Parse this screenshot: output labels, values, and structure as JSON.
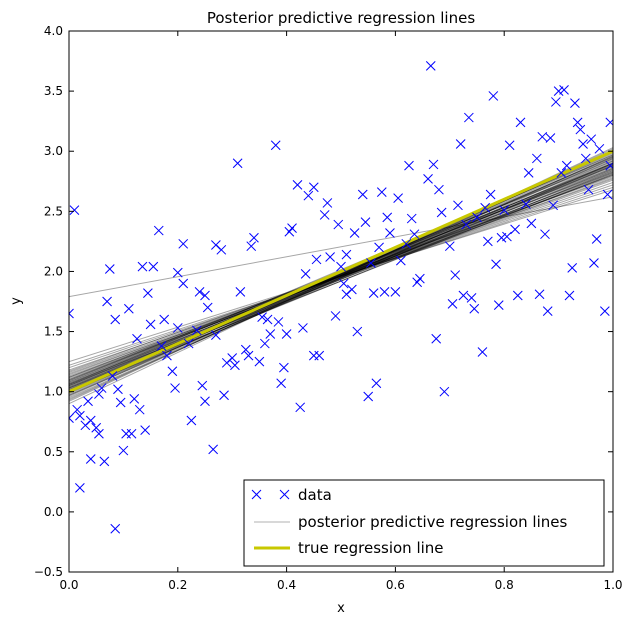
{
  "chart_data": {
    "type": "scatter",
    "title": "Posterior predictive regression lines",
    "xlabel": "x",
    "ylabel": "y",
    "xlim": [
      0.0,
      1.0
    ],
    "ylim": [
      -0.5,
      4.0
    ],
    "xticks": [
      "0.0",
      "0.2",
      "0.4",
      "0.6",
      "0.8",
      "1.0"
    ],
    "yticks": [
      "−0.5",
      "0.0",
      "0.5",
      "1.0",
      "1.5",
      "2.0",
      "2.5",
      "3.0",
      "3.5",
      "4.0"
    ],
    "grid": false,
    "legend_position": "bottom-right",
    "series": [
      {
        "name": "data",
        "kind": "scatter",
        "marker": "x",
        "color": "#0000ff",
        "points": [
          [
            0.0,
            1.65
          ],
          [
            0.0,
            0.78
          ],
          [
            0.01,
            2.51
          ],
          [
            0.015,
            0.85
          ],
          [
            0.02,
            0.2
          ],
          [
            0.02,
            0.8
          ],
          [
            0.03,
            0.72
          ],
          [
            0.035,
            0.92
          ],
          [
            0.04,
            0.44
          ],
          [
            0.04,
            0.76
          ],
          [
            0.05,
            0.7
          ],
          [
            0.055,
            0.65
          ],
          [
            0.055,
            0.98
          ],
          [
            0.06,
            1.03
          ],
          [
            0.065,
            0.42
          ],
          [
            0.07,
            1.75
          ],
          [
            0.075,
            2.02
          ],
          [
            0.08,
            1.13
          ],
          [
            0.085,
            -0.14
          ],
          [
            0.085,
            1.6
          ],
          [
            0.09,
            1.02
          ],
          [
            0.095,
            0.91
          ],
          [
            0.1,
            0.51
          ],
          [
            0.105,
            0.65
          ],
          [
            0.11,
            1.69
          ],
          [
            0.115,
            0.65
          ],
          [
            0.12,
            0.94
          ],
          [
            0.125,
            1.44
          ],
          [
            0.13,
            0.85
          ],
          [
            0.135,
            2.04
          ],
          [
            0.14,
            0.68
          ],
          [
            0.145,
            1.82
          ],
          [
            0.15,
            1.56
          ],
          [
            0.155,
            2.04
          ],
          [
            0.165,
            2.34
          ],
          [
            0.17,
            1.38
          ],
          [
            0.175,
            1.6
          ],
          [
            0.18,
            1.3
          ],
          [
            0.19,
            1.17
          ],
          [
            0.195,
            1.03
          ],
          [
            0.2,
            1.99
          ],
          [
            0.2,
            1.53
          ],
          [
            0.21,
            1.9
          ],
          [
            0.21,
            2.23
          ],
          [
            0.22,
            1.4
          ],
          [
            0.225,
            0.76
          ],
          [
            0.235,
            1.51
          ],
          [
            0.24,
            1.83
          ],
          [
            0.245,
            1.05
          ],
          [
            0.25,
            0.92
          ],
          [
            0.25,
            1.8
          ],
          [
            0.255,
            1.7
          ],
          [
            0.265,
            0.52
          ],
          [
            0.27,
            2.22
          ],
          [
            0.27,
            1.47
          ],
          [
            0.28,
            2.18
          ],
          [
            0.285,
            0.97
          ],
          [
            0.29,
            1.24
          ],
          [
            0.3,
            1.28
          ],
          [
            0.305,
            1.22
          ],
          [
            0.31,
            2.9
          ],
          [
            0.315,
            1.83
          ],
          [
            0.325,
            1.35
          ],
          [
            0.33,
            1.3
          ],
          [
            0.335,
            2.21
          ],
          [
            0.34,
            2.28
          ],
          [
            0.35,
            1.25
          ],
          [
            0.355,
            1.62
          ],
          [
            0.36,
            1.4
          ],
          [
            0.365,
            1.6
          ],
          [
            0.37,
            1.48
          ],
          [
            0.38,
            3.05
          ],
          [
            0.385,
            1.58
          ],
          [
            0.39,
            1.07
          ],
          [
            0.395,
            1.2
          ],
          [
            0.4,
            1.48
          ],
          [
            0.405,
            2.33
          ],
          [
            0.41,
            2.36
          ],
          [
            0.42,
            2.72
          ],
          [
            0.425,
            0.87
          ],
          [
            0.43,
            1.53
          ],
          [
            0.435,
            1.98
          ],
          [
            0.44,
            2.63
          ],
          [
            0.45,
            2.7
          ],
          [
            0.45,
            1.3
          ],
          [
            0.455,
            2.1
          ],
          [
            0.46,
            1.3
          ],
          [
            0.47,
            2.47
          ],
          [
            0.475,
            2.57
          ],
          [
            0.48,
            2.12
          ],
          [
            0.49,
            1.63
          ],
          [
            0.495,
            2.39
          ],
          [
            0.5,
            2.04
          ],
          [
            0.505,
            1.9
          ],
          [
            0.51,
            1.81
          ],
          [
            0.51,
            2.14
          ],
          [
            0.52,
            1.85
          ],
          [
            0.525,
            2.32
          ],
          [
            0.53,
            1.5
          ],
          [
            0.54,
            2.64
          ],
          [
            0.545,
            2.41
          ],
          [
            0.55,
            0.96
          ],
          [
            0.555,
            2.07
          ],
          [
            0.56,
            1.82
          ],
          [
            0.565,
            1.07
          ],
          [
            0.57,
            2.2
          ],
          [
            0.575,
            2.66
          ],
          [
            0.58,
            1.83
          ],
          [
            0.585,
            2.45
          ],
          [
            0.59,
            2.32
          ],
          [
            0.6,
            1.83
          ],
          [
            0.605,
            2.61
          ],
          [
            0.61,
            2.09
          ],
          [
            0.62,
            2.23
          ],
          [
            0.625,
            2.88
          ],
          [
            0.63,
            2.44
          ],
          [
            0.635,
            2.31
          ],
          [
            0.64,
            1.91
          ],
          [
            0.645,
            1.94
          ],
          [
            0.66,
            2.77
          ],
          [
            0.665,
            3.71
          ],
          [
            0.67,
            2.89
          ],
          [
            0.675,
            1.44
          ],
          [
            0.68,
            2.68
          ],
          [
            0.685,
            2.49
          ],
          [
            0.69,
            1.0
          ],
          [
            0.7,
            2.21
          ],
          [
            0.705,
            1.73
          ],
          [
            0.71,
            1.97
          ],
          [
            0.715,
            2.55
          ],
          [
            0.72,
            3.06
          ],
          [
            0.725,
            1.8
          ],
          [
            0.73,
            2.39
          ],
          [
            0.735,
            3.28
          ],
          [
            0.74,
            1.78
          ],
          [
            0.745,
            1.69
          ],
          [
            0.75,
            2.45
          ],
          [
            0.76,
            1.33
          ],
          [
            0.765,
            2.53
          ],
          [
            0.77,
            2.25
          ],
          [
            0.775,
            2.64
          ],
          [
            0.78,
            3.46
          ],
          [
            0.785,
            2.06
          ],
          [
            0.79,
            1.72
          ],
          [
            0.795,
            2.28
          ],
          [
            0.8,
            2.51
          ],
          [
            0.805,
            2.29
          ],
          [
            0.81,
            3.05
          ],
          [
            0.82,
            2.35
          ],
          [
            0.825,
            1.8
          ],
          [
            0.83,
            3.24
          ],
          [
            0.84,
            2.56
          ],
          [
            0.845,
            2.82
          ],
          [
            0.85,
            2.4
          ],
          [
            0.86,
            2.94
          ],
          [
            0.865,
            1.81
          ],
          [
            0.87,
            3.12
          ],
          [
            0.875,
            2.31
          ],
          [
            0.88,
            1.67
          ],
          [
            0.885,
            3.11
          ],
          [
            0.89,
            2.55
          ],
          [
            0.895,
            3.41
          ],
          [
            0.9,
            3.5
          ],
          [
            0.905,
            2.82
          ],
          [
            0.91,
            3.51
          ],
          [
            0.915,
            2.88
          ],
          [
            0.92,
            1.8
          ],
          [
            0.925,
            2.03
          ],
          [
            0.93,
            3.4
          ],
          [
            0.935,
            3.24
          ],
          [
            0.94,
            3.18
          ],
          [
            0.945,
            3.06
          ],
          [
            0.95,
            2.94
          ],
          [
            0.955,
            2.68
          ],
          [
            0.96,
            3.1
          ],
          [
            0.965,
            2.07
          ],
          [
            0.97,
            2.27
          ],
          [
            0.975,
            3.02
          ],
          [
            0.985,
            1.67
          ],
          [
            0.99,
            2.64
          ],
          [
            0.995,
            3.24
          ],
          [
            0.995,
            2.88
          ]
        ]
      },
      {
        "name": "posterior predictive regression lines",
        "kind": "lines",
        "color": "#000000",
        "opacity": 0.35,
        "lines": [
          [
            1.02,
            2.82
          ],
          [
            1.05,
            2.88
          ],
          [
            0.97,
            2.9
          ],
          [
            1.0,
            2.95
          ],
          [
            1.08,
            2.85
          ],
          [
            1.12,
            2.8
          ],
          [
            0.95,
            2.94
          ],
          [
            1.03,
            2.86
          ],
          [
            1.06,
            2.9
          ],
          [
            0.99,
            2.97
          ],
          [
            1.1,
            2.84
          ],
          [
            1.15,
            2.76
          ],
          [
            0.98,
            2.92
          ],
          [
            1.04,
            2.89
          ],
          [
            1.07,
            2.83
          ],
          [
            1.01,
            2.91
          ],
          [
            1.09,
            2.87
          ],
          [
            0.96,
            2.99
          ],
          [
            1.13,
            2.78
          ],
          [
            1.2,
            2.72
          ],
          [
            0.93,
            3.0
          ],
          [
            1.05,
            2.93
          ],
          [
            1.11,
            2.82
          ],
          [
            1.0,
            2.88
          ],
          [
            1.03,
            2.95
          ],
          [
            1.06,
            2.81
          ],
          [
            1.18,
            2.74
          ],
          [
            0.94,
            2.96
          ],
          [
            1.08,
            2.9
          ],
          [
            1.02,
            2.94
          ],
          [
            1.14,
            2.8
          ],
          [
            1.0,
            2.84
          ],
          [
            0.97,
            2.96
          ],
          [
            1.22,
            2.7
          ],
          [
            1.05,
            2.85
          ],
          [
            1.09,
            2.92
          ],
          [
            0.92,
            3.02
          ],
          [
            1.16,
            2.77
          ],
          [
            1.04,
            2.83
          ],
          [
            1.07,
            2.88
          ],
          [
            1.79,
            2.62
          ],
          [
            1.25,
            2.68
          ],
          [
            0.9,
            3.03
          ],
          [
            1.12,
            2.86
          ],
          [
            1.01,
            2.98
          ],
          [
            1.06,
            2.97
          ],
          [
            1.17,
            2.79
          ],
          [
            0.99,
            2.9
          ],
          [
            1.03,
            2.81
          ],
          [
            1.1,
            2.89
          ]
        ]
      },
      {
        "name": "true regression line",
        "kind": "line",
        "color": "#c8c800",
        "points": [
          [
            0.0,
            1.0
          ],
          [
            1.0,
            3.0
          ]
        ]
      }
    ]
  }
}
